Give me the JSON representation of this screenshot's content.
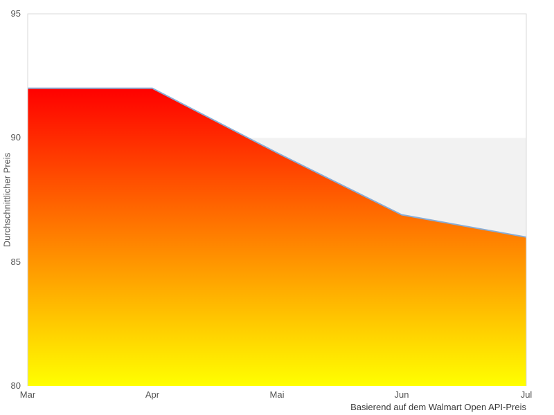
{
  "chart_data": {
    "type": "area",
    "categories": [
      "Mar",
      "Apr",
      "Mai",
      "Jun",
      "Jul"
    ],
    "values": [
      92,
      92,
      89.4,
      86.9,
      86
    ],
    "title": "",
    "xlabel": "",
    "ylabel": "Durchschnittlicher Preis",
    "caption": "Basierend auf dem Walmart Open API-Preis",
    "ylim": [
      80,
      95
    ],
    "yticks": [
      95,
      90,
      85,
      80
    ],
    "grid": false,
    "legend": "none",
    "band": {
      "from": 80,
      "to": 90,
      "color": "#f2f2f2"
    },
    "colors": {
      "line": "#89add6",
      "area_gradient_top": "#ff0000",
      "area_gradient_bottom": "#ffff00",
      "plot_border": "#d9d9d9",
      "tick_text": "#545454",
      "caption_text": "#3a3a3a",
      "background": "#ffffff"
    }
  }
}
